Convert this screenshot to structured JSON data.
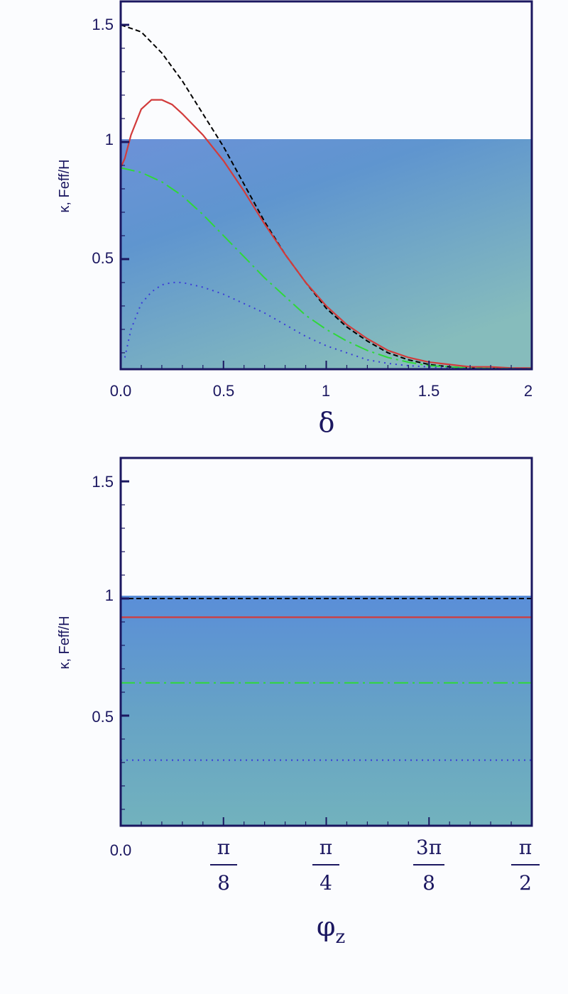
{
  "chart_data": [
    {
      "type": "line",
      "xlabel": "δ",
      "ylabel": "κ, Feff/H",
      "xlim": [
        0,
        2
      ],
      "ylim": [
        0.03,
        1.6
      ],
      "x_ticks": [
        "0.0",
        "0.5",
        "1",
        "1.5",
        "2"
      ],
      "y_ticks": [
        "0.5",
        "1",
        "1.5"
      ],
      "shaded_region": {
        "y_from": 0.03,
        "y_to": 1.0
      },
      "colors": {
        "black": "#000000",
        "red": "#d23b3b",
        "green": "#2fd83a",
        "blue": "#3b3bd8"
      },
      "series": [
        {
          "style": "dashed",
          "color": "black",
          "x": [
            0,
            0.1,
            0.2,
            0.3,
            0.4,
            0.5,
            0.6,
            0.7,
            0.8,
            0.9,
            1.0,
            1.1,
            1.2,
            1.3,
            1.4,
            1.5,
            1.6,
            1.7,
            1.8,
            1.9,
            2.0
          ],
          "y": [
            1.5,
            1.47,
            1.38,
            1.26,
            1.12,
            0.98,
            0.82,
            0.66,
            0.52,
            0.4,
            0.29,
            0.21,
            0.15,
            0.1,
            0.07,
            0.05,
            0.04,
            0.035,
            0.033,
            0.032,
            0.032
          ]
        },
        {
          "style": "solid",
          "color": "red",
          "x": [
            0,
            0.02,
            0.05,
            0.1,
            0.15,
            0.2,
            0.25,
            0.3,
            0.4,
            0.5,
            0.6,
            0.7,
            0.8,
            0.9,
            1.0,
            1.1,
            1.2,
            1.3,
            1.4,
            1.5,
            1.6,
            1.7,
            1.8,
            1.9,
            2.0
          ],
          "y": [
            0.89,
            0.93,
            1.03,
            1.14,
            1.18,
            1.18,
            1.16,
            1.12,
            1.03,
            0.92,
            0.79,
            0.65,
            0.52,
            0.4,
            0.3,
            0.22,
            0.16,
            0.11,
            0.08,
            0.06,
            0.05,
            0.04,
            0.04,
            0.035,
            0.035
          ]
        },
        {
          "style": "dash-dot",
          "color": "green",
          "x": [
            0,
            0.1,
            0.2,
            0.3,
            0.4,
            0.5,
            0.6,
            0.7,
            0.8,
            0.9,
            1.0,
            1.1,
            1.2,
            1.3,
            1.4,
            1.5,
            1.6,
            1.7,
            1.8,
            1.9,
            2.0
          ],
          "y": [
            0.89,
            0.87,
            0.83,
            0.77,
            0.69,
            0.6,
            0.51,
            0.42,
            0.34,
            0.26,
            0.2,
            0.15,
            0.11,
            0.08,
            0.06,
            0.045,
            0.04,
            0.035,
            0.033,
            0.032,
            0.032
          ]
        },
        {
          "style": "dotted",
          "color": "blue",
          "x": [
            0.02,
            0.05,
            0.1,
            0.15,
            0.2,
            0.25,
            0.3,
            0.35,
            0.4,
            0.5,
            0.6,
            0.7,
            0.8,
            0.9,
            1.0,
            1.1,
            1.2,
            1.3,
            1.4,
            1.5,
            1.6,
            1.7,
            1.8,
            1.9,
            2.0
          ],
          "y": [
            0.08,
            0.2,
            0.31,
            0.36,
            0.39,
            0.4,
            0.4,
            0.39,
            0.38,
            0.35,
            0.31,
            0.27,
            0.22,
            0.17,
            0.13,
            0.1,
            0.07,
            0.055,
            0.045,
            0.04,
            0.035,
            0.033,
            0.032,
            0.032,
            0.032
          ]
        }
      ]
    },
    {
      "type": "line",
      "xlabel": "φz",
      "ylabel": "κ, Feff/H",
      "xlim": [
        0,
        1.5708
      ],
      "ylim": [
        0.03,
        1.6
      ],
      "x_ticks": [
        "0.0",
        "π/8",
        "π/4",
        "3π/8",
        "π/2"
      ],
      "y_ticks": [
        "0.5",
        "1",
        "1.5"
      ],
      "shaded_region": {
        "y_from": 0.03,
        "y_to": 1.0
      },
      "colors": {
        "black": "#000000",
        "red": "#d23b3b",
        "green": "#2fd83a",
        "blue": "#3b3bd8"
      },
      "series": [
        {
          "style": "dashed",
          "color": "black",
          "x": [
            0,
            1.5708
          ],
          "y": [
            1.0,
            1.0
          ]
        },
        {
          "style": "solid",
          "color": "red",
          "x": [
            0,
            1.5708
          ],
          "y": [
            0.92,
            0.92
          ]
        },
        {
          "style": "dash-dot",
          "color": "green",
          "x": [
            0,
            1.5708
          ],
          "y": [
            0.64,
            0.64
          ]
        },
        {
          "style": "dotted",
          "color": "blue",
          "x": [
            0,
            1.5708
          ],
          "y": [
            0.31,
            0.31
          ]
        }
      ]
    }
  ]
}
